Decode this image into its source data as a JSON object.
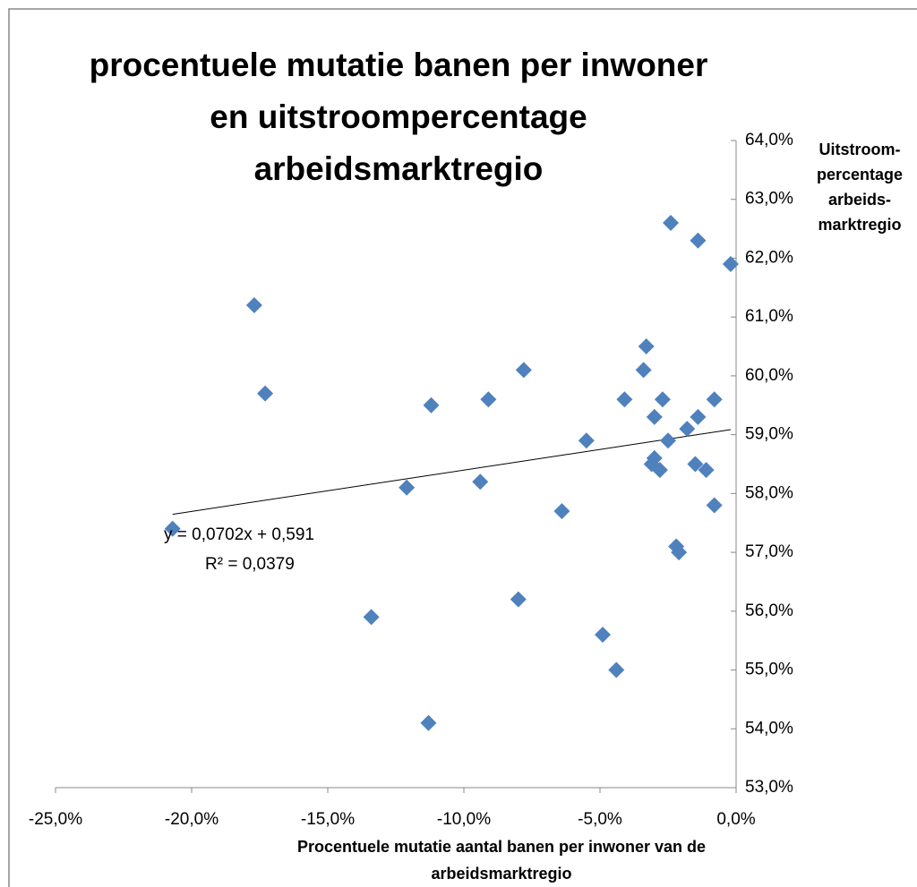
{
  "chart_data": {
    "type": "scatter",
    "title": [
      "procentuele mutatie banen per inwoner",
      "en uitstroompercentage",
      "arbeidsmarktregio"
    ],
    "x_label": [
      "Procentuele mutatie aantal banen per inwoner van de",
      "arbeidsmarktregio"
    ],
    "y_label": [
      "Uitstroom-",
      "percentage",
      "arbeids-",
      "marktregio"
    ],
    "color": "#4f81bd",
    "xlim": [
      -25,
      0
    ],
    "xticks": [
      {
        "value": -25,
        "label": "-25,0%"
      },
      {
        "value": -20,
        "label": "-20,0%"
      },
      {
        "value": -15,
        "label": "-15,0%"
      },
      {
        "value": -10,
        "label": "-10,0%"
      },
      {
        "value": -5,
        "label": "-5,0%"
      },
      {
        "value": 0,
        "label": "0,0%"
      }
    ],
    "ylim": [
      53,
      64
    ],
    "yticks": [
      {
        "value": 53,
        "label": "53,0%"
      },
      {
        "value": 54,
        "label": "54,0%"
      },
      {
        "value": 55,
        "label": "55,0%"
      },
      {
        "value": 56,
        "label": "56,0%"
      },
      {
        "value": 57,
        "label": "57,0%"
      },
      {
        "value": 58,
        "label": "58,0%"
      },
      {
        "value": 59,
        "label": "59,0%"
      },
      {
        "value": 60,
        "label": "60,0%"
      },
      {
        "value": 61,
        "label": "61,0%"
      },
      {
        "value": 62,
        "label": "62,0%"
      },
      {
        "value": 63,
        "label": "63,0%"
      },
      {
        "value": 64,
        "label": "64,0%"
      }
    ],
    "x": [
      -20.7,
      -17.7,
      -17.3,
      -13.4,
      -12.1,
      -11.2,
      -11.3,
      -9.4,
      -9.1,
      -7.8,
      -8.0,
      -6.4,
      -5.5,
      -4.9,
      -4.4,
      -4.1,
      -3.3,
      -3.4,
      -3.0,
      -3.0,
      -3.1,
      -2.8,
      -2.7,
      -2.5,
      -2.4,
      -2.2,
      -2.1,
      -1.8,
      -1.5,
      -1.4,
      -1.4,
      -1.1,
      -0.8,
      -0.8,
      -0.2
    ],
    "values": [
      57.4,
      61.2,
      59.7,
      55.9,
      58.1,
      59.5,
      54.1,
      58.2,
      59.6,
      60.1,
      56.2,
      57.7,
      58.9,
      55.6,
      55.0,
      59.6,
      60.5,
      60.1,
      59.3,
      58.6,
      58.5,
      58.4,
      59.6,
      58.9,
      62.6,
      57.1,
      57.0,
      59.1,
      58.5,
      59.3,
      62.3,
      58.4,
      57.8,
      59.6,
      61.9
    ],
    "trendline": {
      "equation": "y = 0,0702x + 0,591",
      "r2": "R² = 0,0379",
      "slope": 0.0702,
      "intercept": 0.591
    }
  }
}
